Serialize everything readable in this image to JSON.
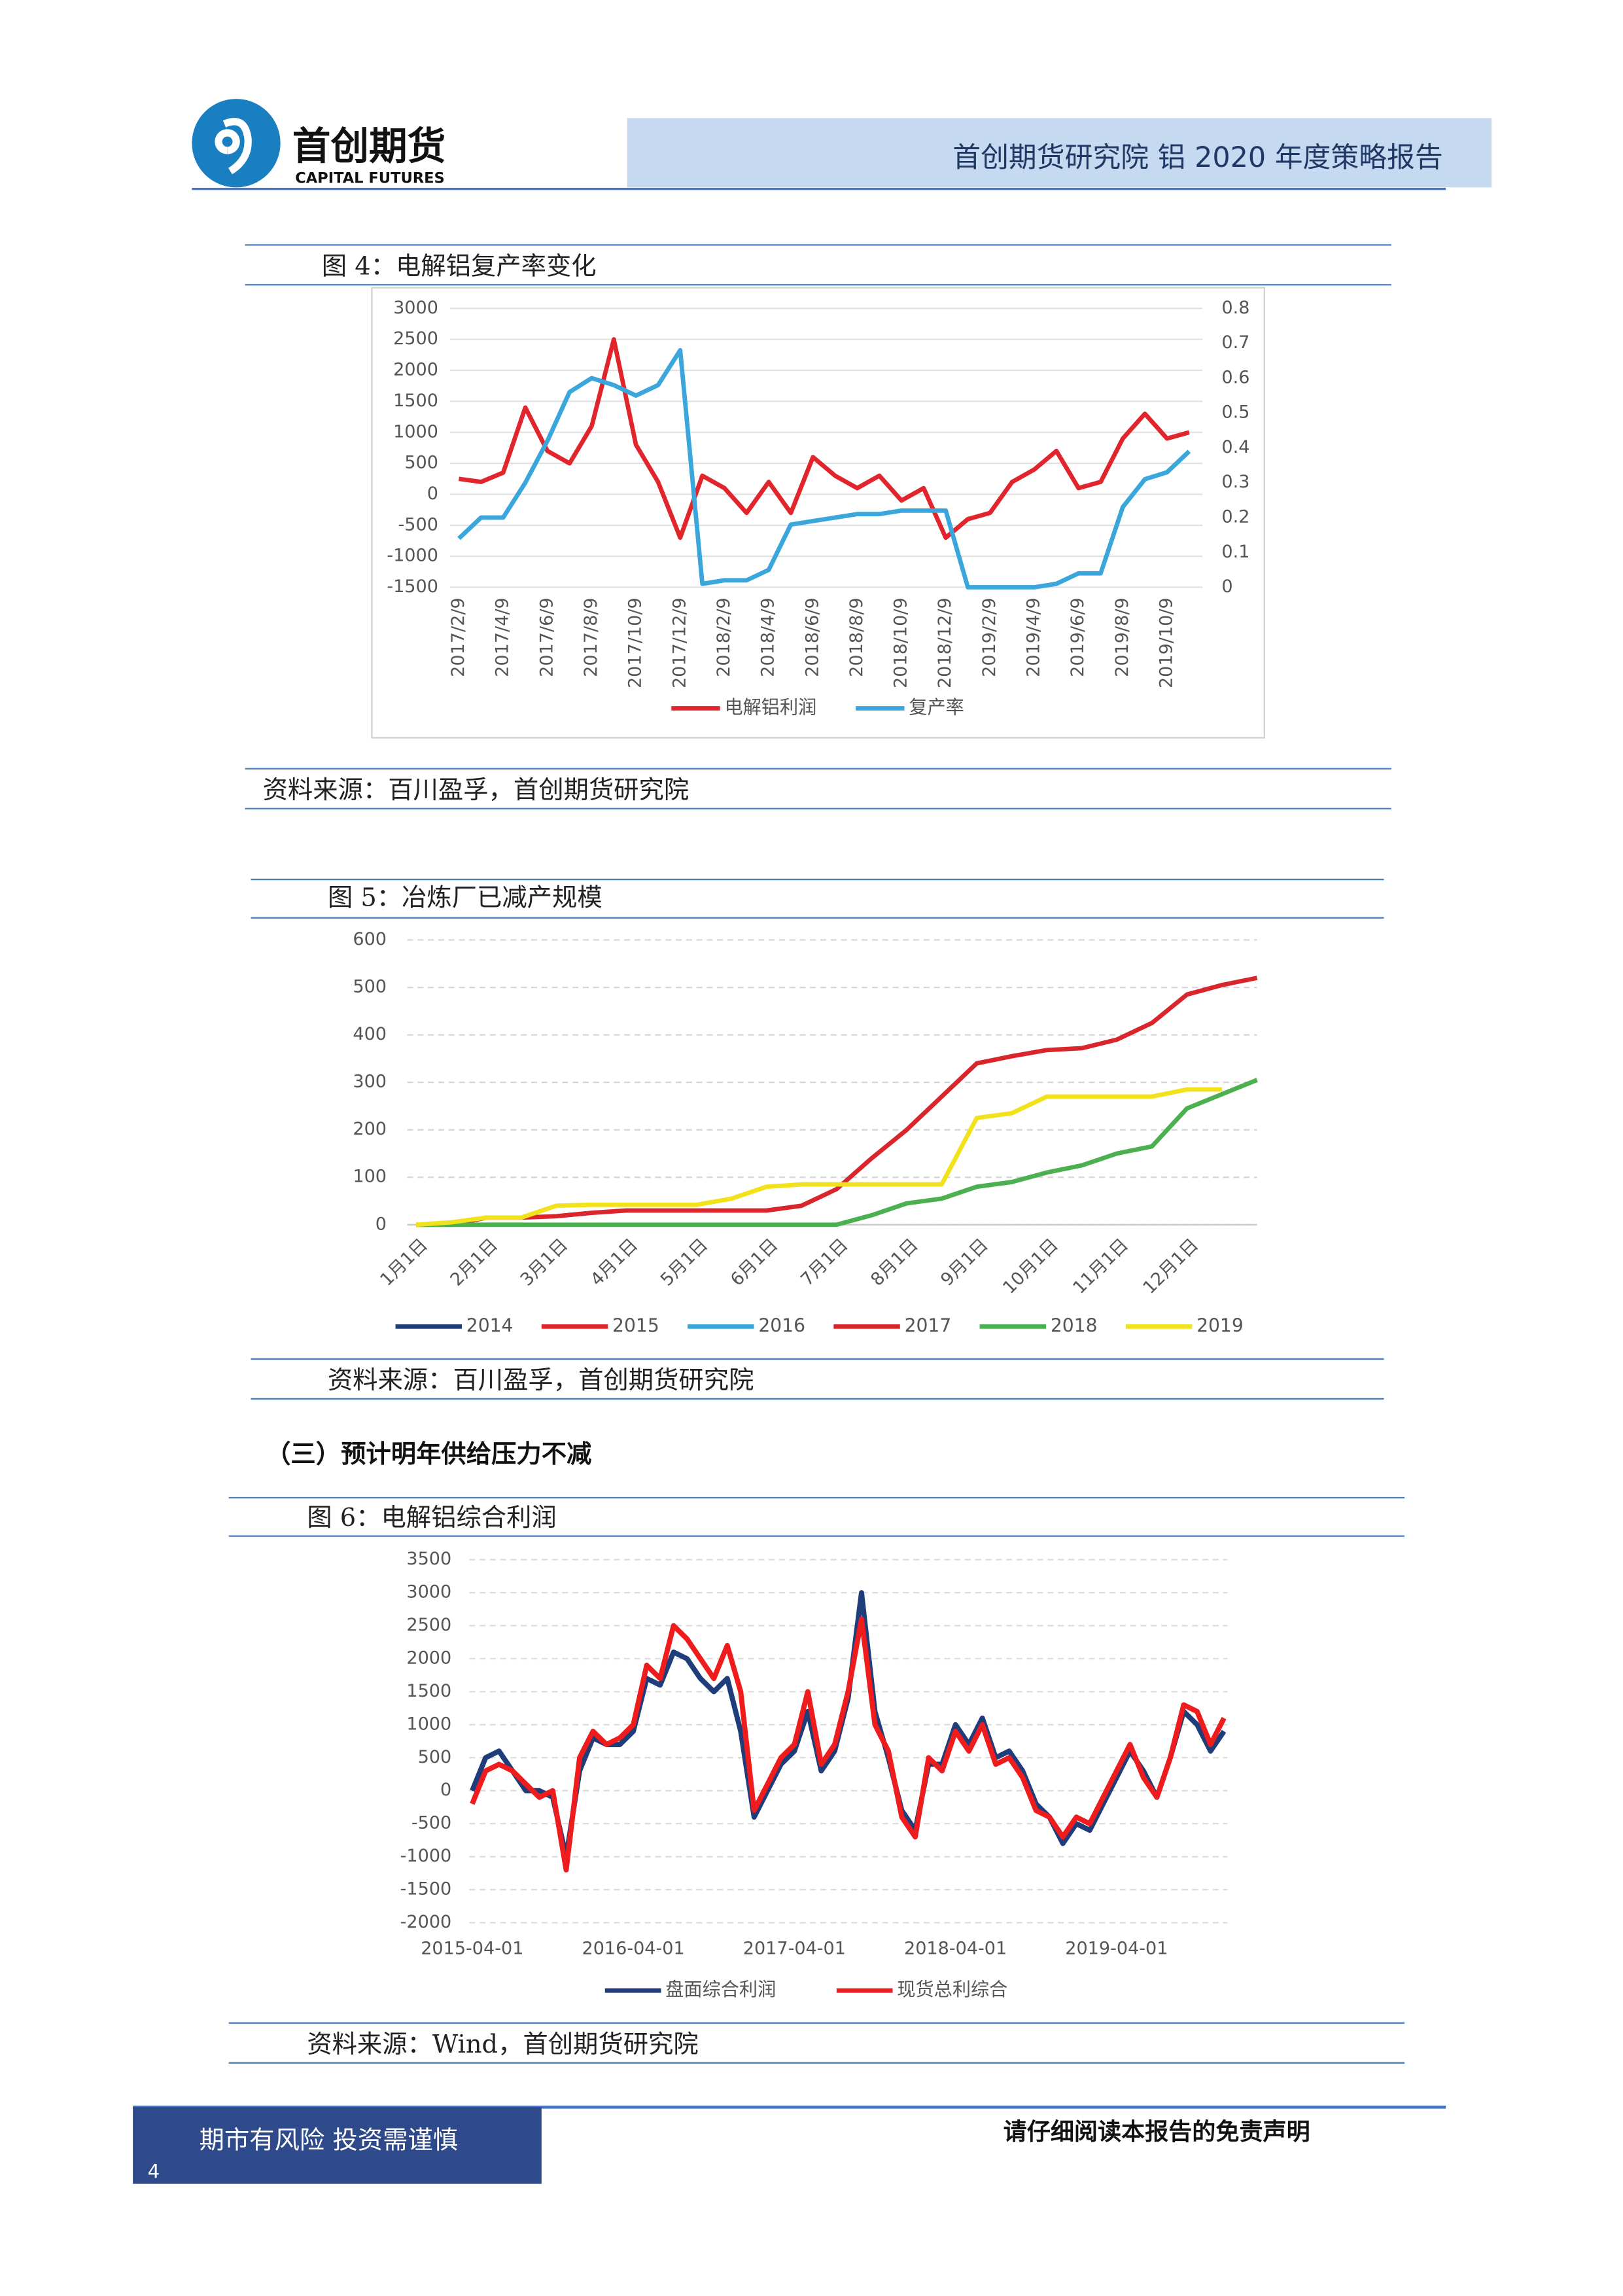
{
  "header": {
    "brand": "首创期货",
    "brand_en": "CAPITAL FUTURES",
    "report": "首创期货研究院 铝 2020 年度策略报告"
  },
  "section_heading": "（三）预计明年供给压力不减",
  "footer": {
    "risk": "期市有风险 投资需谨慎",
    "page": "4",
    "disclaimer": "请仔细阅读本报告的免责声明"
  },
  "chart_data": [
    {
      "type": "line",
      "title": "图 4：电解铝复产率变化",
      "source": "资料来源：百川盈孚，首创期货研究院",
      "categories": [
        "2017/2/9",
        null,
        "2017/4/9",
        null,
        "2017/6/9",
        null,
        "2017/8/9",
        null,
        "2017/10/9",
        null,
        "2017/12/9",
        null,
        "2018/2/9",
        null,
        "2018/4/9",
        null,
        "2018/6/9",
        null,
        "2018/8/9",
        null,
        "2018/10/9",
        null,
        "2018/12/9",
        null,
        "2019/2/9",
        null,
        "2019/4/9",
        null,
        "2019/6/9",
        null,
        "2019/8/9",
        null,
        "2019/10/9",
        null
      ],
      "series": [
        {
          "name": "电解铝利润",
          "color": "#e0262c",
          "values": [
            250,
            200,
            350,
            1400,
            700,
            500,
            1100,
            2500,
            800,
            200,
            -700,
            300,
            100,
            -300,
            200,
            -300,
            600,
            300,
            100,
            300,
            -100,
            100,
            -700,
            -400,
            -300,
            200,
            400,
            700,
            100,
            200,
            900,
            1300,
            900,
            1000
          ]
        },
        {
          "name": "复产率",
          "color": "#3aa6dc",
          "axis": "y2",
          "values": [
            0.14,
            0.2,
            0.2,
            0.3,
            0.42,
            0.56,
            0.6,
            0.58,
            0.55,
            0.58,
            0.68,
            0.01,
            0.02,
            0.02,
            0.05,
            0.18,
            0.19,
            0.2,
            0.21,
            0.21,
            0.22,
            0.22,
            0.22,
            0,
            0,
            0,
            0,
            0.01,
            0.04,
            0.04,
            0.23,
            0.31,
            0.33,
            0.39
          ]
        }
      ],
      "ylim": [
        -1500,
        3000
      ],
      "yticks": [
        -1500,
        -1000,
        -500,
        0,
        500,
        1000,
        1500,
        2000,
        2500,
        3000
      ],
      "y2lim": [
        0,
        0.8
      ],
      "y2ticks": [
        0,
        0.1,
        0.2,
        0.3,
        0.4,
        0.5,
        0.6,
        0.7,
        0.8
      ],
      "grid": true
    },
    {
      "type": "line",
      "title": "图 5：冶炼厂已减产规模",
      "source": "资料来源：百川盈孚，首创期货研究院",
      "categories": [
        "1月1日",
        null,
        "2月1日",
        null,
        "3月1日",
        null,
        "4月1日",
        null,
        "5月1日",
        null,
        "6月1日",
        null,
        "7月1日",
        null,
        "8月1日",
        null,
        "9月1日",
        null,
        "10月1日",
        null,
        "11月1日",
        null,
        "12月1日",
        null,
        null
      ],
      "series": [
        {
          "name": "2014",
          "color": "#1f3d7a",
          "values": [
            null,
            null,
            null,
            null,
            null,
            null,
            null,
            null,
            null,
            null,
            null,
            null,
            null,
            null,
            null,
            null,
            null,
            null,
            null,
            null,
            null,
            null,
            null,
            null,
            null
          ]
        },
        {
          "name": "2015",
          "color": "#e0262c",
          "values": [
            null,
            null,
            null,
            null,
            null,
            null,
            null,
            null,
            null,
            null,
            null,
            null,
            null,
            null,
            null,
            null,
            null,
            null,
            null,
            null,
            null,
            null,
            null,
            null,
            null
          ]
        },
        {
          "name": "2016",
          "color": "#3aa6dc",
          "values": [
            null,
            null,
            null,
            null,
            null,
            null,
            null,
            null,
            null,
            null,
            null,
            null,
            null,
            null,
            null,
            null,
            null,
            null,
            null,
            null,
            null,
            null,
            null,
            null,
            null
          ]
        },
        {
          "name": "2017",
          "color": "#d9262c",
          "values": [
            0,
            0,
            15,
            15,
            18,
            25,
            30,
            30,
            30,
            30,
            30,
            40,
            75,
            140,
            200,
            270,
            340,
            355,
            368,
            372,
            390,
            425,
            485,
            505,
            520
          ]
        },
        {
          "name": "2018",
          "color": "#4caf50",
          "values": [
            0,
            0,
            0,
            0,
            0,
            0,
            0,
            0,
            0,
            0,
            0,
            0,
            0,
            20,
            45,
            55,
            80,
            90,
            110,
            125,
            150,
            165,
            245,
            275,
            305
          ]
        },
        {
          "name": "2019",
          "color": "#f2e21c",
          "values": [
            0,
            5,
            15,
            15,
            40,
            42,
            42,
            42,
            42,
            55,
            80,
            85,
            85,
            85,
            85,
            85,
            225,
            235,
            270,
            270,
            270,
            270,
            285,
            285,
            null
          ]
        }
      ],
      "ylim": [
        0,
        600
      ],
      "yticks": [
        0,
        100,
        200,
        300,
        400,
        500,
        600
      ],
      "grid": true
    },
    {
      "type": "line",
      "title": "图 6：电解铝综合利润",
      "source": "资料来源：Wind，首创期货研究院",
      "categories": [
        "2015-04-01",
        null,
        null,
        null,
        null,
        null,
        null,
        null,
        null,
        null,
        null,
        null,
        "2016-04-01",
        null,
        null,
        null,
        null,
        null,
        null,
        null,
        null,
        null,
        null,
        null,
        "2017-04-01",
        null,
        null,
        null,
        null,
        null,
        null,
        null,
        null,
        null,
        null,
        null,
        "2018-04-01",
        null,
        null,
        null,
        null,
        null,
        null,
        null,
        null,
        null,
        null,
        null,
        "2019-04-01",
        null,
        null,
        null,
        null,
        null,
        null,
        null,
        null
      ],
      "series": [
        {
          "name": "盘面综合利润",
          "color": "#1f3d7a",
          "values": [
            0,
            500,
            600,
            300,
            0,
            0,
            -100,
            -1000,
            300,
            800,
            700,
            700,
            900,
            1700,
            1600,
            2100,
            2000,
            1700,
            1500,
            1700,
            900,
            -400,
            0,
            400,
            600,
            1200,
            300,
            600,
            1400,
            3000,
            1200,
            500,
            -300,
            -600,
            400,
            400,
            1000,
            700,
            1100,
            500,
            600,
            300,
            -200,
            -400,
            -800,
            -500,
            -600,
            -200,
            200,
            600,
            300,
            -100,
            500,
            1200,
            1000,
            600,
            900
          ]
        },
        {
          "name": "现货总利综合",
          "color": "#ee1c1c",
          "values": [
            -200,
            300,
            400,
            300,
            100,
            -100,
            0,
            -1200,
            500,
            900,
            700,
            800,
            1000,
            1900,
            1700,
            2500,
            2300,
            2000,
            1700,
            2200,
            1500,
            -300,
            100,
            500,
            700,
            1500,
            400,
            700,
            1500,
            2600,
            1000,
            600,
            -400,
            -700,
            500,
            300,
            900,
            600,
            1000,
            400,
            500,
            200,
            -300,
            -400,
            -700,
            -400,
            -500,
            -100,
            300,
            700,
            200,
            -100,
            500,
            1300,
            1200,
            700,
            1100
          ]
        }
      ],
      "ylim": [
        -2000,
        3500
      ],
      "yticks": [
        -2000,
        -1500,
        -1000,
        -500,
        0,
        500,
        1000,
        1500,
        2000,
        2500,
        3000,
        3500
      ],
      "grid": true
    }
  ]
}
